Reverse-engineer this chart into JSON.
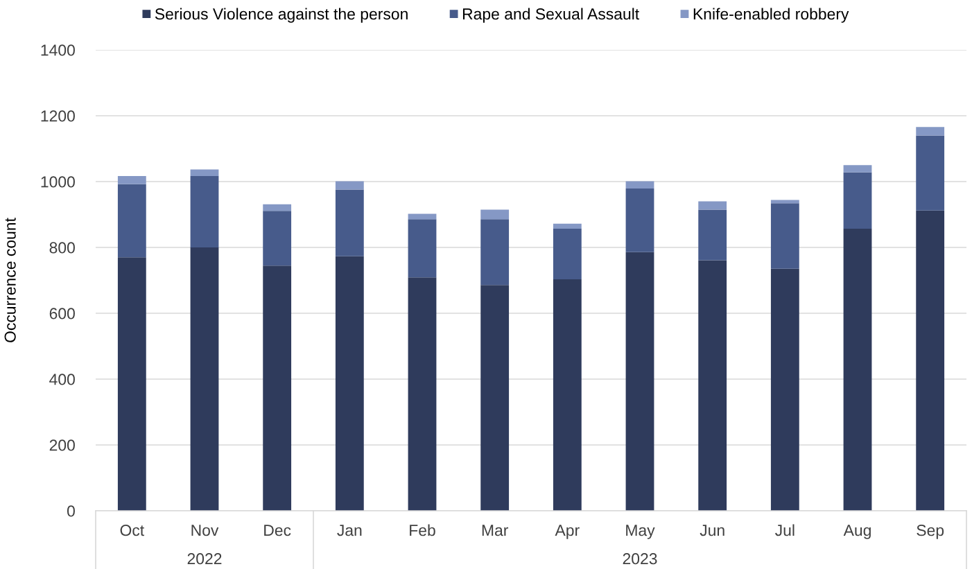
{
  "chart_data": {
    "type": "bar",
    "stacked": true,
    "ylabel": "Occurrence count",
    "categories": [
      "Oct",
      "Nov",
      "Dec",
      "Jan",
      "Feb",
      "Mar",
      "Apr",
      "May",
      "Jun",
      "Jul",
      "Aug",
      "Sep"
    ],
    "annotations": [
      "2022",
      "2023"
    ],
    "series": [
      {
        "name": "Serious Violence against the person",
        "color": "#2f3b5c",
        "values": [
          770,
          800,
          745,
          773,
          709,
          686,
          703,
          786,
          761,
          735,
          857,
          912
        ]
      },
      {
        "name": "Rape and Sexual Assault",
        "color": "#475b8b",
        "values": [
          222,
          217,
          166,
          203,
          177,
          200,
          154,
          193,
          154,
          199,
          171,
          228
        ]
      },
      {
        "name": "Knife-enabled robbery",
        "color": "#8598c5",
        "values": [
          25,
          20,
          20,
          25,
          16,
          29,
          15,
          22,
          25,
          10,
          22,
          26
        ]
      }
    ],
    "ylim": [
      0,
      1400
    ],
    "yticks": [
      0,
      200,
      400,
      600,
      800,
      1000,
      1200,
      1400
    ],
    "grid": "y",
    "legend": "top"
  }
}
